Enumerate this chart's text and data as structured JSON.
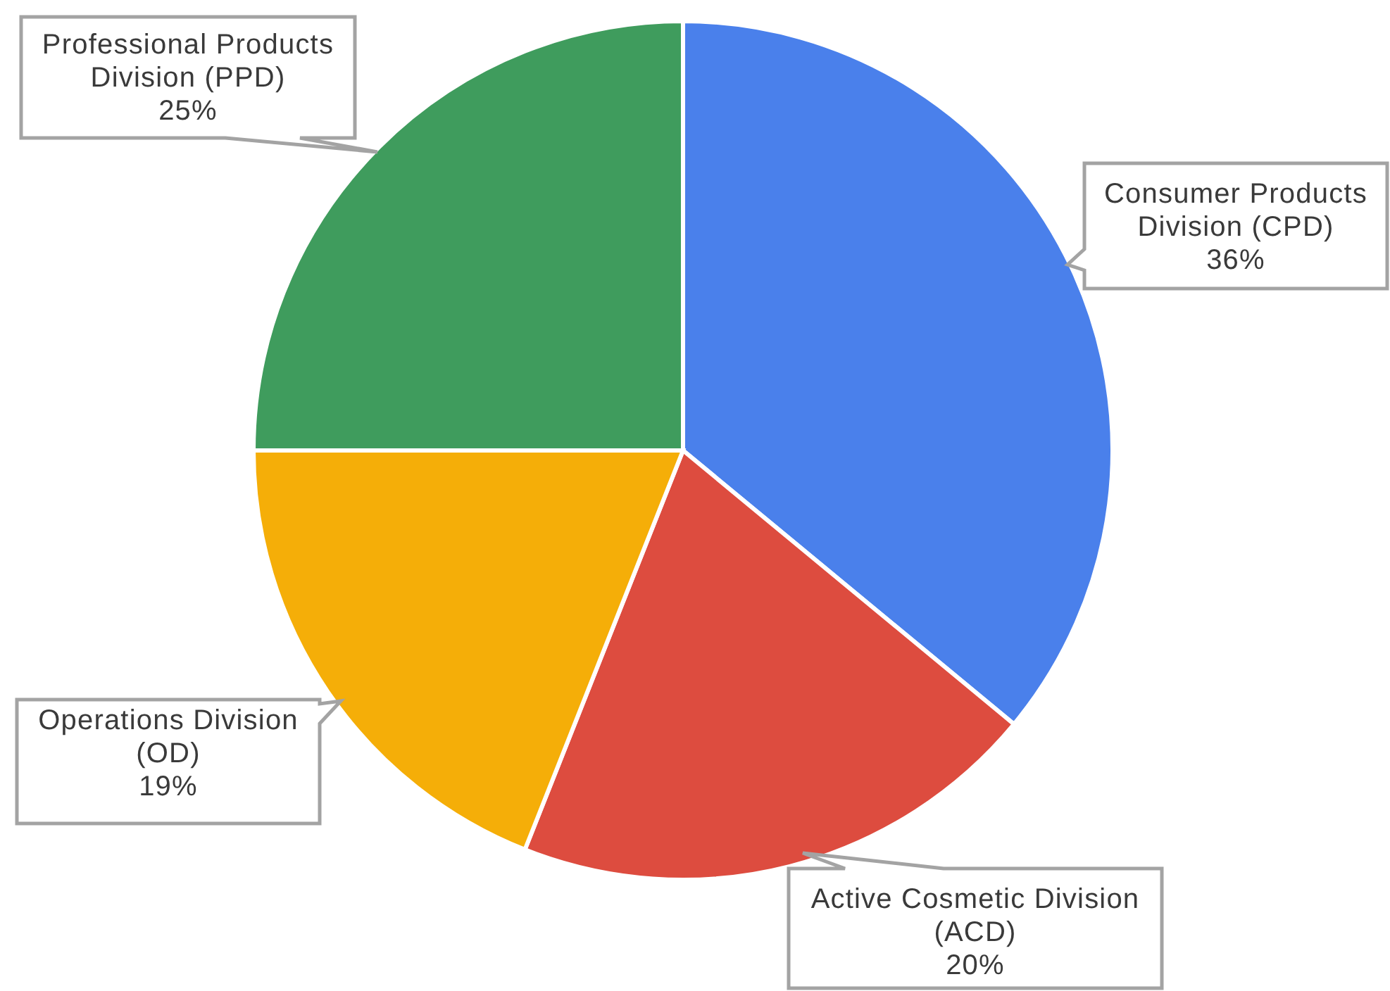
{
  "chart_data": {
    "type": "pie",
    "categories": [
      "Consumer Products Division (CPD)",
      "Active Cosmetic Division (ACD)",
      "Operations Division (OD)",
      "Professional Products Division (PPD)"
    ],
    "values": [
      36,
      20,
      19,
      25
    ],
    "colors": [
      "#4a80eb",
      "#dd4c3f",
      "#f5ae08",
      "#3f9c5d"
    ],
    "value_labels": [
      "36%",
      "20%",
      "19%",
      "25%"
    ]
  }
}
